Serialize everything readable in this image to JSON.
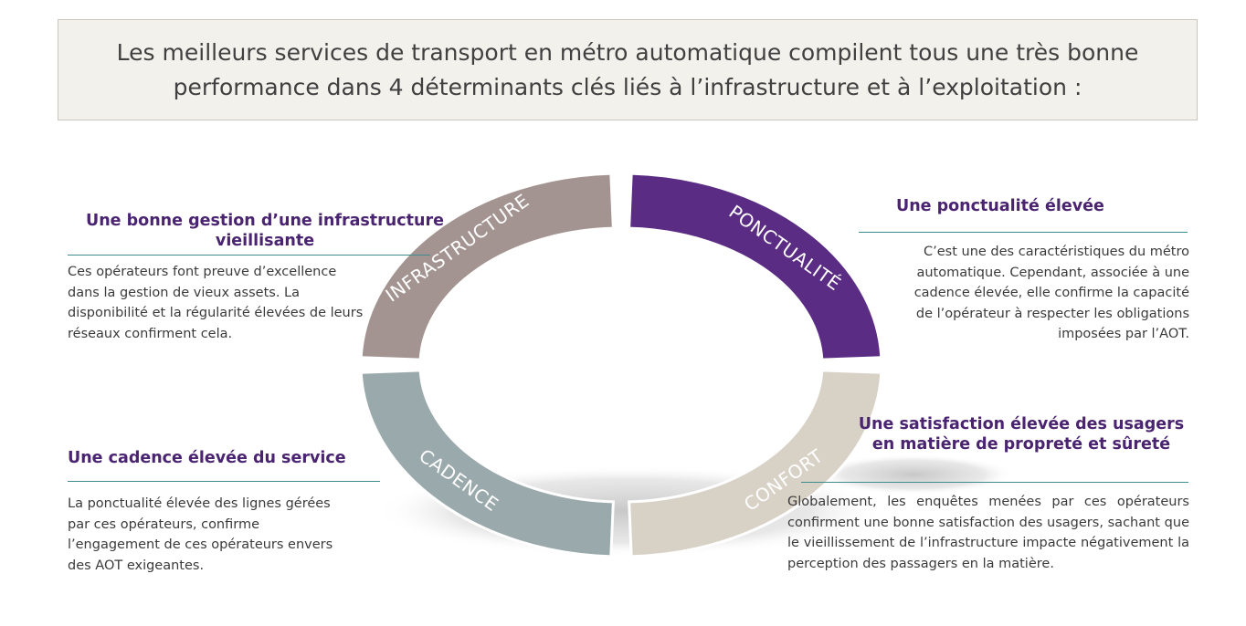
{
  "header": {
    "title": "Les meilleurs services de transport en métro automatique compilent tous une très bonne performance dans 4 déterminants clés liés à l’infrastructure et à l’exploitation :"
  },
  "cycle": {
    "segments": [
      {
        "label": "INFRASTRUCTURE",
        "color": "#a39491"
      },
      {
        "label": "PONCTUALITÉ",
        "color": "#5a2c83"
      },
      {
        "label": "CONFORT",
        "color": "#d8d1c6"
      },
      {
        "label": "CADENCE",
        "color": "#9aa9ab"
      }
    ]
  },
  "blocks": {
    "infrastructure": {
      "heading": "Une bonne gestion d’une infrastructure vieillisante",
      "text": "Ces opérateurs font preuve d’excellence dans la gestion de vieux assets. La disponibilité et la régularité élevées de leurs réseaux confirment cela."
    },
    "ponctualite": {
      "heading": "Une ponctualité élevée",
      "text": "C’est une des caractéristiques du métro automatique. Cependant, associée à une cadence élevée, elle confirme la capacité de l’opérateur à respecter les obligations imposées par l’AOT."
    },
    "cadence": {
      "heading": "Une cadence élevée du service",
      "text": "La ponctualité élevée des lignes gérées par ces opérateurs, confirme l’engagement de ces opérateurs envers des AOT exigeantes."
    },
    "confort": {
      "heading": "Une satisfaction élevée des usagers en matière de propreté et sûreté",
      "text": "Globalement, les enquêtes menées par ces opérateurs confirment une bonne satisfaction des usagers, sachant que le vieillissement de l’infrastructure impacte négativement la perception des passagers en la matière."
    }
  }
}
